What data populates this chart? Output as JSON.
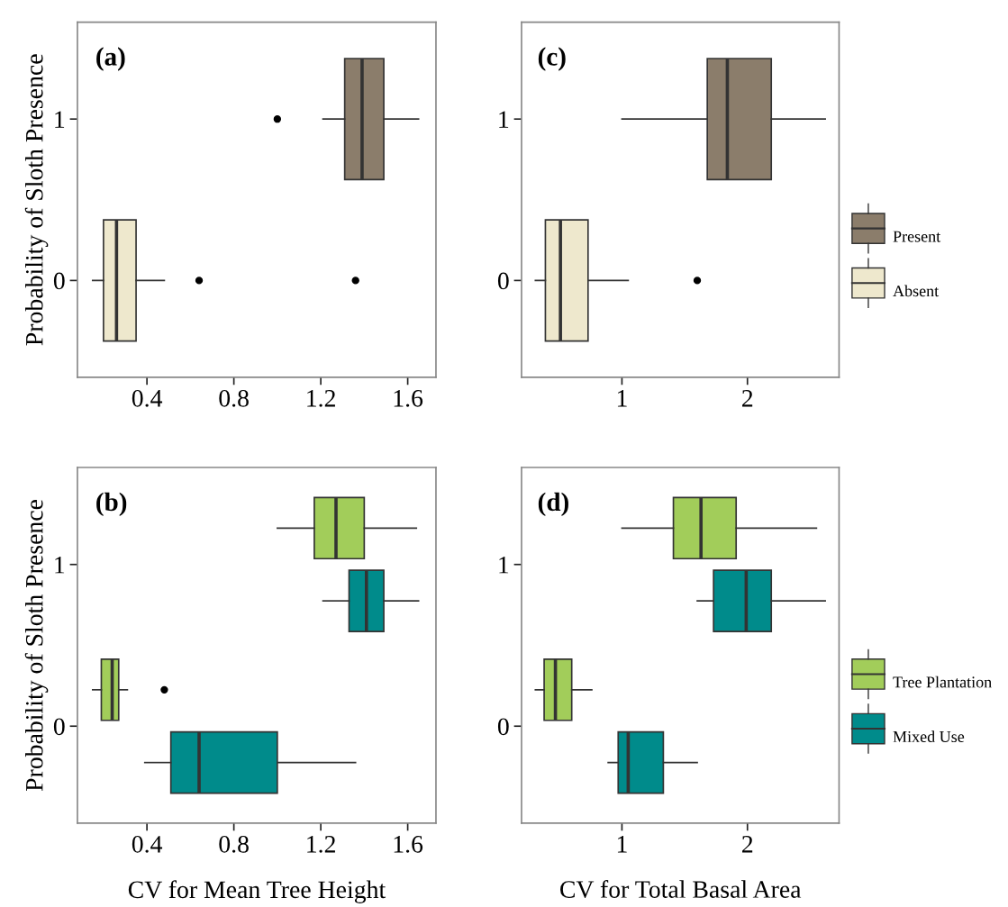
{
  "chart_data": [
    {
      "type": "box",
      "orientation": "horizontal",
      "title": "(a)",
      "ylabel": "Probability of Sloth Presence",
      "categories": [
        "1",
        "0"
      ],
      "xlim": [
        0.08,
        1.73
      ],
      "xticks": [
        0.4,
        0.8,
        1.2,
        1.6
      ],
      "grid": false,
      "series": [
        {
          "color": "#8b7d6b",
          "boxes": [
            {
              "low": 1.21,
              "q1": 1.31,
              "median": 1.39,
              "q3": 1.49,
              "high": 1.65,
              "outliers": [
                1.0
              ]
            },
            null
          ]
        },
        {
          "color": "#eee8cd",
          "boxes": [
            null,
            {
              "low": 0.15,
              "q1": 0.2,
              "median": 0.26,
              "q3": 0.35,
              "high": 0.48,
              "outliers": [
                0.64,
                1.36
              ]
            }
          ]
        }
      ]
    },
    {
      "type": "box",
      "orientation": "horizontal",
      "title": "(c)",
      "categories": [
        "1",
        "0"
      ],
      "xlim": [
        0.2,
        2.73
      ],
      "xticks": [
        1,
        2
      ],
      "grid": false,
      "legend": "right",
      "series": [
        {
          "name": "Present",
          "color": "#8b7d6b",
          "boxes": [
            {
              "low": 1.0,
              "q1": 1.68,
              "median": 1.84,
              "q3": 2.19,
              "high": 2.62
            },
            null
          ]
        },
        {
          "name": "Absent",
          "color": "#eee8cd",
          "boxes": [
            null,
            {
              "low": 0.31,
              "q1": 0.39,
              "median": 0.51,
              "q3": 0.73,
              "high": 1.05,
              "outliers": [
                1.6
              ]
            }
          ]
        }
      ]
    },
    {
      "type": "box",
      "orientation": "horizontal",
      "title": "(b)",
      "ylabel": "Probability of Sloth Presence",
      "xlabel": "CV for Mean Tree Height",
      "categories": [
        "1",
        "0"
      ],
      "xlim": [
        0.08,
        1.73
      ],
      "xticks": [
        0.4,
        0.8,
        1.2,
        1.6
      ],
      "grid": false,
      "series": [
        {
          "color": "#a2cd5a",
          "boxes": [
            {
              "low": 1.0,
              "q1": 1.17,
              "median": 1.27,
              "q3": 1.4,
              "high": 1.64
            },
            {
              "low": 0.15,
              "q1": 0.19,
              "median": 0.24,
              "q3": 0.27,
              "high": 0.31,
              "outliers": [
                0.48
              ]
            }
          ]
        },
        {
          "color": "#008b8b",
          "boxes": [
            {
              "low": 1.21,
              "q1": 1.33,
              "median": 1.41,
              "q3": 1.49,
              "high": 1.65
            },
            {
              "low": 0.39,
              "q1": 0.51,
              "median": 0.64,
              "q3": 1.0,
              "high": 1.36
            }
          ]
        }
      ]
    },
    {
      "type": "box",
      "orientation": "horizontal",
      "title": "(d)",
      "xlabel": "CV for Total Basal Area",
      "categories": [
        "1",
        "0"
      ],
      "xlim": [
        0.2,
        2.73
      ],
      "xticks": [
        1,
        2
      ],
      "grid": false,
      "legend": "right",
      "series": [
        {
          "name": "Tree Plantation",
          "color": "#a2cd5a",
          "boxes": [
            {
              "low": 1.0,
              "q1": 1.41,
              "median": 1.63,
              "q3": 1.91,
              "high": 2.55
            },
            {
              "low": 0.31,
              "q1": 0.38,
              "median": 0.47,
              "q3": 0.6,
              "high": 0.76
            }
          ]
        },
        {
          "name": "Mixed Use",
          "color": "#008b8b",
          "boxes": [
            {
              "low": 1.6,
              "q1": 1.73,
              "median": 1.99,
              "q3": 2.19,
              "high": 2.62
            },
            {
              "low": 0.89,
              "q1": 0.97,
              "median": 1.05,
              "q3": 1.33,
              "high": 1.6
            }
          ]
        }
      ]
    }
  ]
}
